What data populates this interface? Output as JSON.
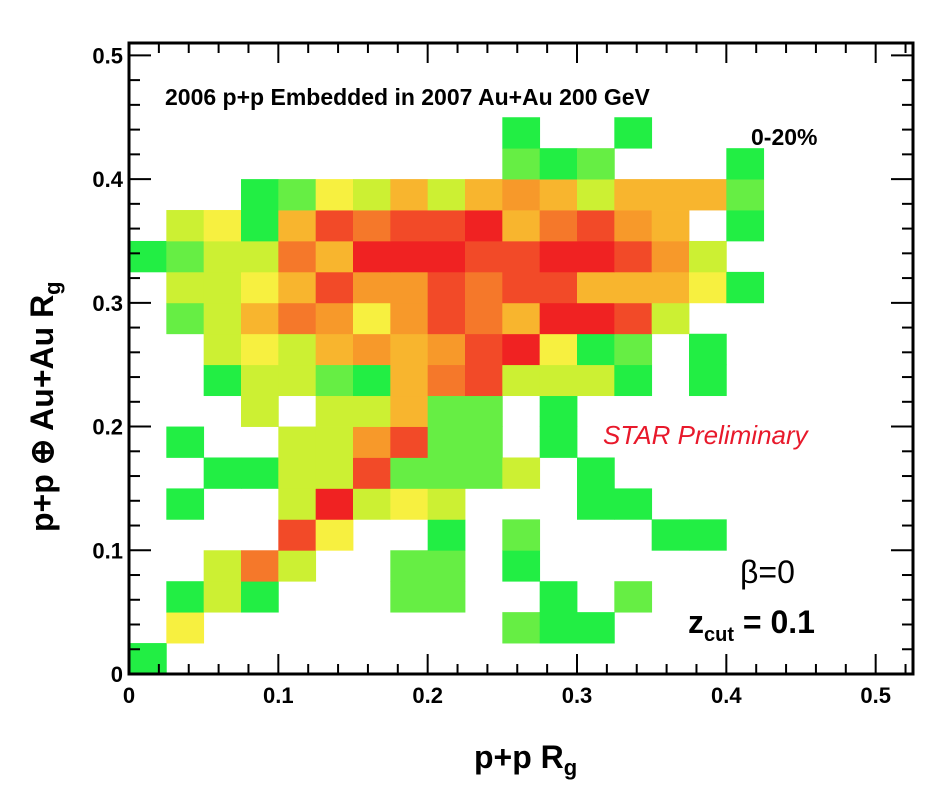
{
  "chart_data": {
    "type": "heatmap",
    "title": "2006 p+p Embedded in 2007 Au+Au 200 GeV",
    "subtitle": "0-20%",
    "annotation": "STAR Preliminary",
    "annotation_color": "#e8192b",
    "xlabel": "p+p R",
    "xlabel_sub": "g",
    "ylabel": "p+p ⊕ Au+Au  R",
    "ylabel_sub": "g",
    "beta_label": "β=0",
    "zcut_main": "z",
    "zcut_sub": "cut",
    "zcut_value": " = 0.1",
    "xlim": [
      0,
      0.525
    ],
    "ylim": [
      0,
      0.51
    ],
    "xticks": [
      "0",
      "0.1",
      "0.2",
      "0.3",
      "0.4",
      "0.5"
    ],
    "yticks": [
      "0",
      "0.1",
      "0.2",
      "0.3",
      "0.4",
      "0.5"
    ],
    "bin_width": 0.025,
    "bin_height": 0.025,
    "grid": false,
    "legend": "none",
    "color_scale": [
      "#22ee44",
      "#66ee44",
      "#ccf033",
      "#f7f040",
      "#f8b52e",
      "#f7992a",
      "#f5782a",
      "#f24a28",
      "#f02222"
    ],
    "level_note": "intensity levels 1 (green, low) to 9 (red, high)",
    "cells": [
      [
        0.0,
        0.0,
        1
      ],
      [
        0.025,
        0.025,
        4
      ],
      [
        0.25,
        0.025,
        2
      ],
      [
        0.275,
        0.025,
        1
      ],
      [
        0.3,
        0.025,
        1
      ],
      [
        0.025,
        0.05,
        1
      ],
      [
        0.05,
        0.05,
        3
      ],
      [
        0.075,
        0.05,
        1
      ],
      [
        0.175,
        0.05,
        2
      ],
      [
        0.2,
        0.05,
        2
      ],
      [
        0.275,
        0.05,
        1
      ],
      [
        0.325,
        0.05,
        2
      ],
      [
        0.05,
        0.075,
        3
      ],
      [
        0.075,
        0.075,
        7
      ],
      [
        0.1,
        0.075,
        3
      ],
      [
        0.175,
        0.075,
        2
      ],
      [
        0.2,
        0.075,
        2
      ],
      [
        0.25,
        0.075,
        1
      ],
      [
        0.1,
        0.1,
        8
      ],
      [
        0.125,
        0.1,
        4
      ],
      [
        0.2,
        0.1,
        1
      ],
      [
        0.25,
        0.1,
        2
      ],
      [
        0.35,
        0.1,
        1
      ],
      [
        0.375,
        0.1,
        1
      ],
      [
        0.025,
        0.125,
        1
      ],
      [
        0.1,
        0.125,
        3
      ],
      [
        0.125,
        0.125,
        9
      ],
      [
        0.15,
        0.125,
        3
      ],
      [
        0.175,
        0.125,
        4
      ],
      [
        0.2,
        0.125,
        3
      ],
      [
        0.3,
        0.125,
        1
      ],
      [
        0.325,
        0.125,
        1
      ],
      [
        0.05,
        0.15,
        1
      ],
      [
        0.075,
        0.15,
        1
      ],
      [
        0.1,
        0.15,
        3
      ],
      [
        0.125,
        0.15,
        3
      ],
      [
        0.15,
        0.15,
        8
      ],
      [
        0.175,
        0.15,
        2
      ],
      [
        0.2,
        0.15,
        2
      ],
      [
        0.225,
        0.15,
        2
      ],
      [
        0.25,
        0.15,
        3
      ],
      [
        0.3,
        0.15,
        1
      ],
      [
        0.025,
        0.175,
        1
      ],
      [
        0.1,
        0.175,
        3
      ],
      [
        0.125,
        0.175,
        3
      ],
      [
        0.15,
        0.175,
        6
      ],
      [
        0.175,
        0.175,
        8
      ],
      [
        0.2,
        0.175,
        2
      ],
      [
        0.225,
        0.175,
        2
      ],
      [
        0.275,
        0.175,
        1
      ],
      [
        0.075,
        0.2,
        3
      ],
      [
        0.125,
        0.2,
        3
      ],
      [
        0.15,
        0.2,
        3
      ],
      [
        0.175,
        0.2,
        5
      ],
      [
        0.2,
        0.2,
        2
      ],
      [
        0.225,
        0.2,
        2
      ],
      [
        0.275,
        0.2,
        1
      ],
      [
        0.05,
        0.225,
        1
      ],
      [
        0.075,
        0.225,
        3
      ],
      [
        0.1,
        0.225,
        3
      ],
      [
        0.125,
        0.225,
        2
      ],
      [
        0.15,
        0.225,
        1
      ],
      [
        0.175,
        0.225,
        5
      ],
      [
        0.2,
        0.225,
        7
      ],
      [
        0.225,
        0.225,
        8
      ],
      [
        0.25,
        0.225,
        3
      ],
      [
        0.275,
        0.225,
        3
      ],
      [
        0.3,
        0.225,
        3
      ],
      [
        0.325,
        0.225,
        1
      ],
      [
        0.375,
        0.225,
        1
      ],
      [
        0.05,
        0.25,
        3
      ],
      [
        0.075,
        0.25,
        4
      ],
      [
        0.1,
        0.25,
        3
      ],
      [
        0.125,
        0.25,
        5
      ],
      [
        0.15,
        0.25,
        6
      ],
      [
        0.175,
        0.25,
        5
      ],
      [
        0.2,
        0.25,
        6
      ],
      [
        0.225,
        0.25,
        8
      ],
      [
        0.25,
        0.25,
        9
      ],
      [
        0.275,
        0.25,
        4
      ],
      [
        0.3,
        0.25,
        1
      ],
      [
        0.325,
        0.25,
        2
      ],
      [
        0.375,
        0.25,
        1
      ],
      [
        0.025,
        0.275,
        2
      ],
      [
        0.05,
        0.275,
        3
      ],
      [
        0.075,
        0.275,
        5
      ],
      [
        0.1,
        0.275,
        7
      ],
      [
        0.125,
        0.275,
        6
      ],
      [
        0.15,
        0.275,
        4
      ],
      [
        0.175,
        0.275,
        6
      ],
      [
        0.2,
        0.275,
        8
      ],
      [
        0.225,
        0.275,
        7
      ],
      [
        0.25,
        0.275,
        5
      ],
      [
        0.275,
        0.275,
        9
      ],
      [
        0.3,
        0.275,
        9
      ],
      [
        0.325,
        0.275,
        8
      ],
      [
        0.35,
        0.275,
        3
      ],
      [
        0.025,
        0.3,
        3
      ],
      [
        0.05,
        0.3,
        3
      ],
      [
        0.075,
        0.3,
        4
      ],
      [
        0.1,
        0.3,
        5
      ],
      [
        0.125,
        0.3,
        8
      ],
      [
        0.15,
        0.3,
        6
      ],
      [
        0.175,
        0.3,
        6
      ],
      [
        0.2,
        0.3,
        8
      ],
      [
        0.225,
        0.3,
        7
      ],
      [
        0.25,
        0.3,
        8
      ],
      [
        0.275,
        0.3,
        8
      ],
      [
        0.3,
        0.3,
        5
      ],
      [
        0.325,
        0.3,
        5
      ],
      [
        0.35,
        0.3,
        5
      ],
      [
        0.375,
        0.3,
        4
      ],
      [
        0.4,
        0.3,
        1
      ],
      [
        0.0,
        0.325,
        1
      ],
      [
        0.025,
        0.325,
        2
      ],
      [
        0.05,
        0.325,
        3
      ],
      [
        0.075,
        0.325,
        3
      ],
      [
        0.1,
        0.325,
        7
      ],
      [
        0.125,
        0.325,
        5
      ],
      [
        0.15,
        0.325,
        9
      ],
      [
        0.175,
        0.325,
        9
      ],
      [
        0.2,
        0.325,
        9
      ],
      [
        0.225,
        0.325,
        8
      ],
      [
        0.25,
        0.325,
        8
      ],
      [
        0.275,
        0.325,
        9
      ],
      [
        0.3,
        0.325,
        9
      ],
      [
        0.325,
        0.325,
        8
      ],
      [
        0.35,
        0.325,
        6
      ],
      [
        0.375,
        0.325,
        3
      ],
      [
        0.025,
        0.35,
        3
      ],
      [
        0.05,
        0.35,
        4
      ],
      [
        0.075,
        0.35,
        1
      ],
      [
        0.1,
        0.35,
        5
      ],
      [
        0.125,
        0.35,
        8
      ],
      [
        0.15,
        0.35,
        7
      ],
      [
        0.175,
        0.35,
        8
      ],
      [
        0.2,
        0.35,
        8
      ],
      [
        0.225,
        0.35,
        9
      ],
      [
        0.25,
        0.35,
        5
      ],
      [
        0.275,
        0.35,
        7
      ],
      [
        0.3,
        0.35,
        8
      ],
      [
        0.325,
        0.35,
        6
      ],
      [
        0.35,
        0.35,
        5
      ],
      [
        0.4,
        0.35,
        1
      ],
      [
        0.075,
        0.375,
        1
      ],
      [
        0.1,
        0.375,
        2
      ],
      [
        0.125,
        0.375,
        4
      ],
      [
        0.15,
        0.375,
        3
      ],
      [
        0.175,
        0.375,
        5
      ],
      [
        0.2,
        0.375,
        3
      ],
      [
        0.225,
        0.375,
        5
      ],
      [
        0.25,
        0.375,
        6
      ],
      [
        0.275,
        0.375,
        5
      ],
      [
        0.3,
        0.375,
        3
      ],
      [
        0.325,
        0.375,
        5
      ],
      [
        0.35,
        0.375,
        5
      ],
      [
        0.375,
        0.375,
        5
      ],
      [
        0.4,
        0.375,
        2
      ],
      [
        0.25,
        0.4,
        2
      ],
      [
        0.275,
        0.4,
        1
      ],
      [
        0.3,
        0.4,
        2
      ],
      [
        0.4,
        0.4,
        1
      ],
      [
        0.25,
        0.425,
        1
      ],
      [
        0.325,
        0.425,
        1
      ]
    ]
  }
}
